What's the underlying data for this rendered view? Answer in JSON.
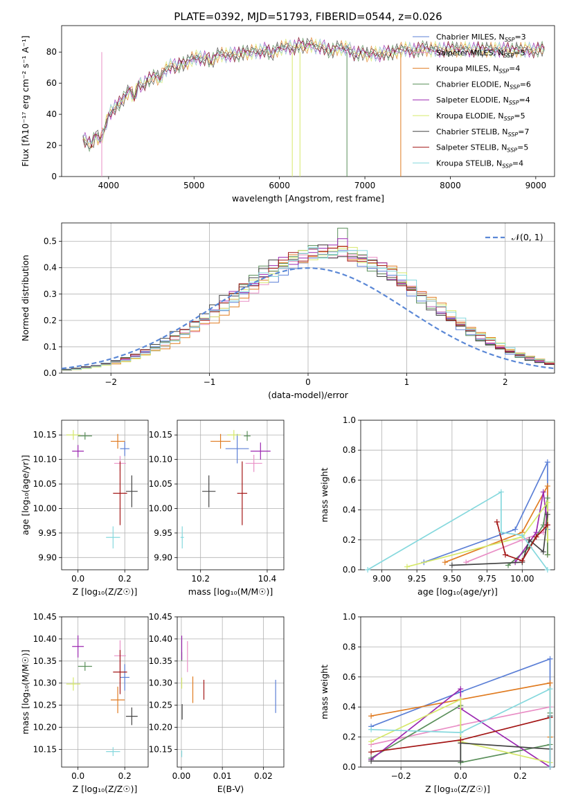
{
  "figure_title": "PLATE=0392, MJD=51793, FIBERID=0544, z=0.026",
  "colors": {
    "chabrier_miles": "#5b7fd6",
    "salpeter_miles": "#e98fc6",
    "kroupa_miles": "#e07b20",
    "chabrier_elodie": "#5a8f5a",
    "salpeter_elodie": "#9b27b0",
    "kroupa_elodie": "#d6e86a",
    "chabrier_stelib": "#444444",
    "salpeter_stelib": "#a31515",
    "kroupa_stelib": "#85d8dd",
    "gaussian": "#5b88d6"
  },
  "chart_data": [
    {
      "id": "spectrum",
      "type": "line",
      "title": "PLATE=0392, MJD=51793, FIBERID=0544, z=0.026",
      "xlabel": "wavelength [Angstrom, rest frame]",
      "ylabel": "Flux [fλ10⁻¹⁷ erg cm⁻² s⁻¹ A⁻¹]",
      "xlim": [
        3450,
        9220
      ],
      "ylim": [
        0,
        97
      ],
      "xticks": [
        "4000",
        "5000",
        "6000",
        "7000",
        "8000",
        "9000"
      ],
      "yticks": [
        "0",
        "20",
        "40",
        "60",
        "80"
      ],
      "legend_position": "top-right",
      "legend": [
        {
          "prefix": "Chabrier MILES, N",
          "sub": "SSP",
          "suffix": "=3"
        },
        {
          "prefix": "Salpeter MILES, N",
          "sub": "SSP",
          "suffix": "=5"
        },
        {
          "prefix": "Kroupa MILES, N",
          "sub": "SSP",
          "suffix": "=4"
        },
        {
          "prefix": "Chabrier ELODIE, N",
          "sub": "SSP",
          "suffix": "=6"
        },
        {
          "prefix": "Salpeter ELODIE, N",
          "sub": "SSP",
          "suffix": "=4"
        },
        {
          "prefix": "Kroupa ELODIE, N",
          "sub": "SSP",
          "suffix": "=5"
        },
        {
          "prefix": "Chabrier STELIB, N",
          "sub": "SSP",
          "suffix": "=7"
        },
        {
          "prefix": "Salpeter STELIB, N",
          "sub": "SSP",
          "suffix": "=5"
        },
        {
          "prefix": "Kroupa STELIB, N",
          "sub": "SSP",
          "suffix": "=4"
        }
      ],
      "x": [
        3700,
        3750,
        3800,
        3850,
        3900,
        3950,
        4000,
        4050,
        4100,
        4150,
        4200,
        4250,
        4300,
        4350,
        4400,
        4450,
        4500,
        4550,
        4600,
        4650,
        4700,
        4750,
        4800,
        4850,
        4900,
        4950,
        5000,
        5050,
        5100,
        5150,
        5200,
        5250,
        5300,
        5350,
        5400,
        5450,
        5500,
        5550,
        5600,
        5650,
        5700,
        5750,
        5800,
        5850,
        5900,
        5950,
        6000,
        6050,
        6100,
        6150,
        6200,
        6250,
        6300,
        6350,
        6400,
        6450,
        6500,
        6550,
        6600,
        6650,
        6700,
        6750,
        6800,
        6850,
        6900,
        6950,
        7000,
        7050,
        7100,
        7150,
        7200,
        7250,
        7300,
        7350,
        7400,
        7450,
        7500,
        7550,
        7600,
        7650,
        7700,
        7750,
        7800,
        7850,
        7900,
        7950,
        8000,
        8050,
        8100,
        8150,
        8200,
        8250,
        8300,
        8350,
        8400,
        8450,
        8500,
        8550,
        8600,
        8650,
        8700,
        8750,
        8800,
        8850,
        8900,
        8950,
        9000,
        9050,
        9100
      ],
      "y": [
        25,
        22,
        20,
        27,
        23,
        30,
        40,
        43,
        46,
        48,
        52,
        56,
        50,
        60,
        58,
        62,
        63,
        65,
        62,
        68,
        70,
        72,
        70,
        73,
        72,
        75,
        76,
        77,
        75,
        77,
        73,
        77,
        79,
        78,
        78,
        79,
        78,
        79,
        80,
        79,
        81,
        80,
        81,
        82,
        78,
        81,
        82,
        83,
        84,
        82,
        84,
        85,
        83,
        85,
        84,
        83,
        84,
        82,
        80,
        82,
        83,
        82,
        83,
        80,
        78,
        80,
        79,
        78,
        80,
        78,
        79,
        80,
        79,
        80,
        81,
        82,
        82,
        81,
        81,
        82,
        83,
        81,
        82,
        82,
        81,
        82,
        82,
        82,
        81,
        82,
        82,
        81,
        82,
        82,
        81,
        82,
        81,
        82,
        81,
        82,
        81,
        81,
        82,
        81,
        82,
        81,
        81,
        82,
        82
      ]
    },
    {
      "id": "residuals",
      "type": "histogram",
      "xlabel": "(data-model)/error",
      "ylabel": "Normed distribution",
      "xlim": [
        -2.5,
        2.5
      ],
      "ylim": [
        0,
        0.57
      ],
      "xticks": [
        "−2",
        "−1",
        "0",
        "1",
        "2"
      ],
      "yticks": [
        "0.0",
        "0.1",
        "0.2",
        "0.3",
        "0.4",
        "0.5"
      ],
      "legend_position": "top-right",
      "legend": [
        "𝒩(0, 1)"
      ],
      "bin_width": 0.1,
      "peak_values": {
        "salpeter_elodie": 0.51,
        "chabrier_elodie": 0.55,
        "kroupa_miles": 0.48
      }
    },
    {
      "id": "age-vs-Z",
      "type": "scatter",
      "xlabel": "Z [log₁₀(Z/Z☉)]",
      "ylabel": "age  [log₁₀(age/yr)]",
      "xlim": [
        -0.07,
        0.3
      ],
      "ylim": [
        9.875,
        10.18
      ],
      "xticks": [
        "0.0",
        "0.2"
      ],
      "yticks": [
        "9.90",
        "9.95",
        "10.00",
        "10.05",
        "10.10",
        "10.15"
      ],
      "points": [
        {
          "series": "chabrier_miles",
          "x": 0.2,
          "y": 10.122,
          "ex": 0.04,
          "ey": 0.03
        },
        {
          "series": "salpeter_miles",
          "x": 0.18,
          "y": 10.092,
          "ex": 0.05,
          "ey": 0.03
        },
        {
          "series": "kroupa_miles",
          "x": 0.17,
          "y": 10.137,
          "ex": 0.06,
          "ey": 0.03
        },
        {
          "series": "chabrier_elodie",
          "x": 0.03,
          "y": 10.148,
          "ex": 0.06,
          "ey": 0.015
        },
        {
          "series": "salpeter_elodie",
          "x": 0.0,
          "y": 10.117,
          "ex": 0.05,
          "ey": 0.025
        },
        {
          "series": "kroupa_elodie",
          "x": -0.02,
          "y": 10.15,
          "ex": 0.06,
          "ey": 0.02
        },
        {
          "series": "chabrier_stelib",
          "x": 0.23,
          "y": 10.035,
          "ex": 0.05,
          "ey": 0.065
        },
        {
          "series": "salpeter_stelib",
          "x": 0.18,
          "y": 10.031,
          "ex": 0.06,
          "ey": 0.13
        },
        {
          "series": "kroupa_stelib",
          "x": 0.15,
          "y": 9.941,
          "ex": 0.06,
          "ey": 0.045
        }
      ]
    },
    {
      "id": "age-vs-mass",
      "type": "scatter",
      "xlabel": "mass [log₁₀(M/M☉)]",
      "xlim": [
        10.13,
        10.45
      ],
      "ylim": [
        9.875,
        10.18
      ],
      "xticks": [
        "10.2",
        "10.4"
      ],
      "yticks": [
        "9.90",
        "9.95",
        "10.00",
        "10.05",
        "10.10",
        "10.15"
      ],
      "points": [
        {
          "series": "chabrier_miles",
          "x": 10.31,
          "y": 10.122,
          "ex": 0.07,
          "ey": 0.06
        },
        {
          "series": "salpeter_miles",
          "x": 10.36,
          "y": 10.092,
          "ex": 0.05,
          "ey": 0.035
        },
        {
          "series": "kroupa_miles",
          "x": 10.26,
          "y": 10.137,
          "ex": 0.06,
          "ey": 0.03
        },
        {
          "series": "chabrier_elodie",
          "x": 10.34,
          "y": 10.148,
          "ex": 0.02,
          "ey": 0.02
        },
        {
          "series": "salpeter_elodie",
          "x": 10.38,
          "y": 10.117,
          "ex": 0.06,
          "ey": 0.035
        },
        {
          "series": "kroupa_elodie",
          "x": 10.3,
          "y": 10.15,
          "ex": 0.04,
          "ey": 0.02
        },
        {
          "series": "chabrier_stelib",
          "x": 10.225,
          "y": 10.035,
          "ex": 0.04,
          "ey": 0.065
        },
        {
          "series": "salpeter_stelib",
          "x": 10.325,
          "y": 10.031,
          "ex": 0.03,
          "ey": 0.13
        },
        {
          "series": "kroupa_stelib",
          "x": 10.145,
          "y": 9.941,
          "ex": 0.01,
          "ey": 0.045
        }
      ]
    },
    {
      "id": "mass-weight-vs-age",
      "type": "line",
      "xlabel": "age  [log₁₀(age/yr)]",
      "ylabel": "mass weight",
      "xlim": [
        8.85,
        10.23
      ],
      "ylim": [
        0,
        1
      ],
      "xticks": [
        "9.00",
        "9.25",
        "9.50",
        "9.75",
        "10.00"
      ],
      "yticks": [
        "0.0",
        "0.2",
        "0.4",
        "0.6",
        "0.8",
        "1.0"
      ],
      "series": [
        {
          "key": "chabrier_miles",
          "x": [
            9.3,
            9.95,
            10.18,
            10.18
          ],
          "y": [
            0.05,
            0.27,
            0.72,
            0.27
          ]
        },
        {
          "key": "salpeter_miles",
          "x": [
            9.6,
            10.0,
            10.15,
            10.18
          ],
          "y": [
            0.05,
            0.2,
            0.25,
            0.4
          ]
        },
        {
          "key": "kroupa_miles",
          "x": [
            9.45,
            10.0,
            10.18,
            10.18
          ],
          "y": [
            0.05,
            0.25,
            0.56,
            0.1
          ]
        },
        {
          "key": "chabrier_elodie",
          "x": [
            9.9,
            10.05,
            10.15,
            10.18,
            10.18
          ],
          "y": [
            0.03,
            0.15,
            0.3,
            0.48,
            0.1
          ]
        },
        {
          "key": "salpeter_elodie",
          "x": [
            9.95,
            10.1,
            10.15,
            10.18
          ],
          "y": [
            0.05,
            0.25,
            0.52,
            0.3
          ]
        },
        {
          "key": "kroupa_elodie",
          "x": [
            9.18,
            10.0,
            10.18,
            10.18
          ],
          "y": [
            0.02,
            0.22,
            0.45,
            0.2
          ]
        },
        {
          "key": "chabrier_stelib",
          "x": [
            9.5,
            10.0,
            10.05,
            10.15,
            10.18
          ],
          "y": [
            0.03,
            0.05,
            0.2,
            0.12,
            0.37
          ]
        },
        {
          "key": "salpeter_stelib",
          "x": [
            9.82,
            9.88,
            10.0,
            10.1,
            10.18
          ],
          "y": [
            0.32,
            0.1,
            0.06,
            0.22,
            0.3
          ]
        },
        {
          "key": "kroupa_stelib",
          "x": [
            8.9,
            9.85,
            9.85,
            10.0,
            10.18
          ],
          "y": [
            0.0,
            0.52,
            0.25,
            0.23,
            0.0
          ]
        }
      ]
    },
    {
      "id": "mass-vs-Z",
      "type": "scatter",
      "xlabel": "Z [log₁₀(Z/Z☉)]",
      "ylabel": "mass [log₁₀(M/M☉)]",
      "xlim": [
        -0.07,
        0.3
      ],
      "ylim": [
        10.11,
        10.45
      ],
      "xticks": [
        "0.0",
        "0.2"
      ],
      "yticks": [
        "10.15",
        "10.20",
        "10.25",
        "10.30",
        "10.35",
        "10.40",
        "10.45"
      ],
      "points": [
        {
          "series": "chabrier_miles",
          "x": 0.2,
          "y": 10.313,
          "ex": 0.04,
          "ey": 0.06
        },
        {
          "series": "salpeter_miles",
          "x": 0.18,
          "y": 10.362,
          "ex": 0.05,
          "ey": 0.07
        },
        {
          "series": "kroupa_miles",
          "x": 0.17,
          "y": 10.262,
          "ex": 0.06,
          "ey": 0.06
        },
        {
          "series": "chabrier_elodie",
          "x": 0.03,
          "y": 10.338,
          "ex": 0.06,
          "ey": 0.02
        },
        {
          "series": "salpeter_elodie",
          "x": 0.0,
          "y": 10.383,
          "ex": 0.05,
          "ey": 0.05
        },
        {
          "series": "kroupa_elodie",
          "x": -0.02,
          "y": 10.298,
          "ex": 0.06,
          "ey": 0.03
        },
        {
          "series": "chabrier_stelib",
          "x": 0.23,
          "y": 10.225,
          "ex": 0.05,
          "ey": 0.04
        },
        {
          "series": "salpeter_stelib",
          "x": 0.18,
          "y": 10.325,
          "ex": 0.06,
          "ey": 0.1
        },
        {
          "series": "kroupa_stelib",
          "x": 0.15,
          "y": 10.145,
          "ex": 0.06,
          "ey": 0.02
        }
      ]
    },
    {
      "id": "mass-vs-EBV",
      "type": "scatter",
      "xlabel": "E(B-V)",
      "xlim": [
        -0.001,
        0.025
      ],
      "ylim": [
        10.11,
        10.45
      ],
      "xticks": [
        "0.00",
        "0.01",
        "0.02"
      ],
      "yticks": [
        "10.15",
        "10.20",
        "10.25",
        "10.30",
        "10.35",
        "10.40",
        "10.45"
      ],
      "points": [
        {
          "series": "chabrier_miles",
          "x": 0.023,
          "y": 10.27,
          "ex": 0,
          "ey": 0.075
        },
        {
          "series": "salpeter_miles",
          "x": 0.0015,
          "y": 10.36,
          "ex": 0,
          "ey": 0.07
        },
        {
          "series": "kroupa_miles",
          "x": 0.0028,
          "y": 10.285,
          "ex": 0,
          "ey": 0.06
        },
        {
          "series": "chabrier_elodie",
          "x": 0.0001,
          "y": 10.36,
          "ex": 0,
          "ey": 0.02
        },
        {
          "series": "salpeter_elodie",
          "x": 0.0001,
          "y": 10.38,
          "ex": 0,
          "ey": 0.055
        },
        {
          "series": "kroupa_elodie",
          "x": 0.0001,
          "y": 10.3,
          "ex": 0,
          "ey": 0.025
        },
        {
          "series": "chabrier_stelib",
          "x": 0.0002,
          "y": 10.235,
          "ex": 0,
          "ey": 0.035
        },
        {
          "series": "salpeter_stelib",
          "x": 0.0055,
          "y": 10.285,
          "ex": 0,
          "ey": 0.045
        },
        {
          "series": "kroupa_stelib",
          "x": 0.0001,
          "y": 10.14,
          "ex": 0,
          "ey": 0.015
        }
      ]
    },
    {
      "id": "mass-weight-vs-Z",
      "type": "line",
      "xlabel": "Z [log₁₀(Z/Z☉)]",
      "ylabel": "mass weight",
      "xlim": [
        -0.335,
        0.315
      ],
      "ylim": [
        0,
        1
      ],
      "xticks": [
        "−0.2",
        "0.0",
        "0.2"
      ],
      "yticks": [
        "0.0",
        "0.2",
        "0.4",
        "0.6",
        "0.8",
        "1.0"
      ],
      "series": [
        {
          "key": "chabrier_miles",
          "x": [
            -0.3,
            0.0,
            0.3,
            0.3
          ],
          "y": [
            0.27,
            0.5,
            0.72,
            0.0
          ]
        },
        {
          "key": "salpeter_miles",
          "x": [
            -0.3,
            0.0,
            0.3
          ],
          "y": [
            0.15,
            0.28,
            0.4
          ]
        },
        {
          "key": "kroupa_miles",
          "x": [
            -0.3,
            0.0,
            0.3,
            0.3
          ],
          "y": [
            0.34,
            0.45,
            0.56,
            0.2
          ]
        },
        {
          "key": "chabrier_elodie",
          "x": [
            -0.3,
            0.0,
            0.0,
            0.3,
            0.3
          ],
          "y": [
            0.06,
            0.41,
            0.03,
            0.15,
            0.36
          ]
        },
        {
          "key": "salpeter_elodie",
          "x": [
            -0.3,
            0.0,
            0.0,
            0.3
          ],
          "y": [
            0.05,
            0.52,
            0.39,
            0.0
          ]
        },
        {
          "key": "kroupa_elodie",
          "x": [
            -0.3,
            0.0,
            0.0,
            0.3
          ],
          "y": [
            0.17,
            0.45,
            0.17,
            0.03
          ]
        },
        {
          "key": "chabrier_stelib",
          "x": [
            -0.3,
            0.0,
            0.0,
            0.3,
            0.3
          ],
          "y": [
            0.04,
            0.04,
            0.16,
            0.12,
            0.34
          ]
        },
        {
          "key": "salpeter_stelib",
          "x": [
            -0.3,
            0.0,
            0.3,
            0.3
          ],
          "y": [
            0.1,
            0.18,
            0.33,
            0.0
          ]
        },
        {
          "key": "kroupa_stelib",
          "x": [
            -0.3,
            0.0,
            0.3,
            0.3
          ],
          "y": [
            0.25,
            0.23,
            0.52,
            0.0
          ]
        }
      ]
    }
  ]
}
